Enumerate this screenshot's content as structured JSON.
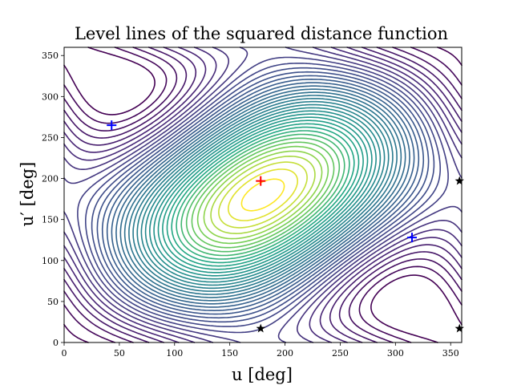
{
  "chart_data": {
    "type": "contour",
    "title": "Level lines of the squared distance function",
    "xlabel": "u [deg]",
    "ylabel": "u′ [deg]",
    "xlim": [
      0,
      360
    ],
    "ylim": [
      0,
      360
    ],
    "xticks": [
      0,
      50,
      100,
      150,
      200,
      250,
      300,
      350
    ],
    "yticks": [
      0,
      50,
      100,
      150,
      200,
      250,
      300,
      350
    ],
    "grid": false,
    "markers": [
      {
        "kind": "plus",
        "color": "#0000ff",
        "x": 43,
        "y": 265
      },
      {
        "kind": "plus",
        "color": "#0000ff",
        "x": 315,
        "y": 128
      },
      {
        "kind": "plus",
        "color": "#ff0000",
        "x": 178,
        "y": 197
      },
      {
        "kind": "star",
        "color": "#000000",
        "x": 178,
        "y": 17
      },
      {
        "kind": "star",
        "color": "#000000",
        "x": 358,
        "y": 197
      },
      {
        "kind": "star",
        "color": "#000000",
        "x": 358,
        "y": 17
      }
    ],
    "colormap": "viridis"
  }
}
